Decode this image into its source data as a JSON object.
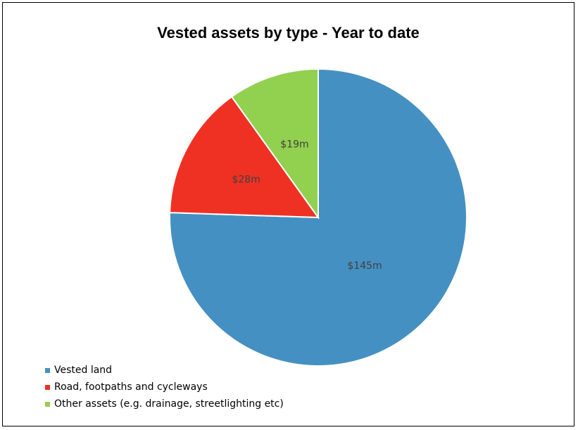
{
  "chart_data": {
    "type": "pie",
    "title": "Vested assets by type - Year to date",
    "slices": [
      {
        "name": "Vested land",
        "value": 145,
        "label": "$145m",
        "color": "#4590C2"
      },
      {
        "name": "Road, footpaths and cycleways",
        "value": 28,
        "label": "$28m",
        "color": "#EF3124"
      },
      {
        "name": "Other assets (e.g. drainage, streetlighting etc)",
        "value": 19,
        "label": "$19m",
        "color": "#92D050"
      }
    ],
    "legend_position": "bottom-left",
    "start_angle": "12 o'clock, clockwise"
  }
}
